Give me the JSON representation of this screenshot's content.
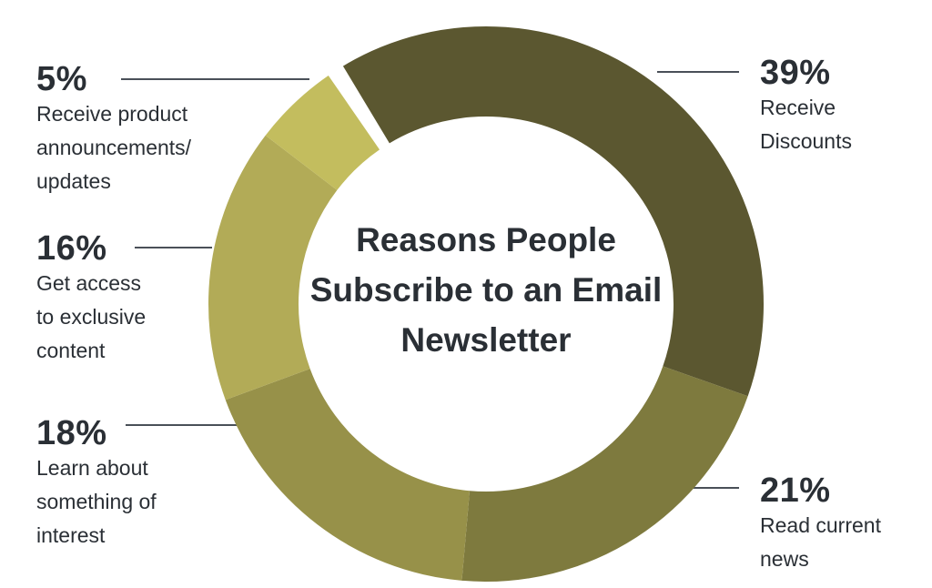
{
  "chart_data": {
    "type": "pie",
    "subtype": "donut",
    "title": "Reasons People Subscribe to an Email Newsletter",
    "unit": "%",
    "slices": [
      {
        "label": "Receive Discounts",
        "value": 39,
        "display": "39%",
        "color": "#5b5730",
        "desc": "Receive\nDiscounts"
      },
      {
        "label": "Read current news",
        "value": 21,
        "display": "21%",
        "color": "#7e7a3e",
        "desc": "Read current\nnews"
      },
      {
        "label": "Learn about something of interest",
        "value": 18,
        "display": "18%",
        "color": "#979149",
        "desc": "Learn about\nsomething of\ninterest"
      },
      {
        "label": "Get access to exclusive content",
        "value": 16,
        "display": "16%",
        "color": "#b2ab57",
        "desc": "Get access\nto exclusive\ncontent"
      },
      {
        "label": "Receive product announcements/updates",
        "value": 5,
        "display": "5%",
        "color": "#c3bd5e",
        "desc": "Receive product\nannouncements/\nupdates"
      }
    ],
    "legend": "none (leader-line labels)"
  }
}
